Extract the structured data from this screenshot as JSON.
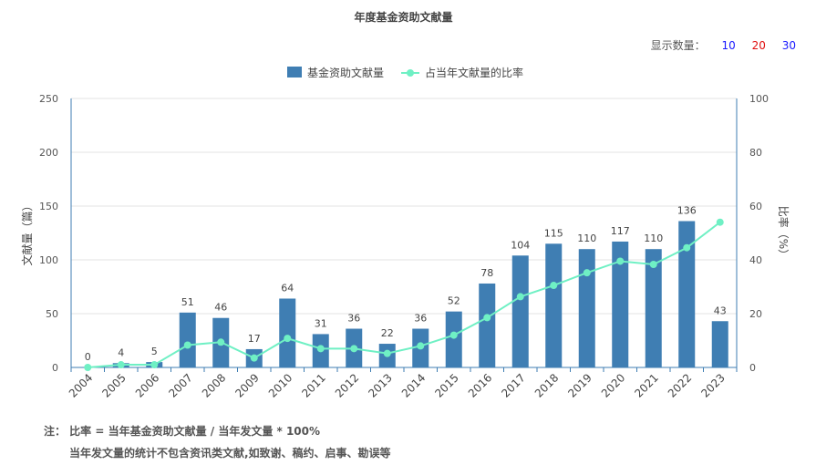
{
  "header": {
    "title": "年度基金资助文献量",
    "count_label": "显示数量：",
    "count_options": [
      "10",
      "20",
      "30"
    ]
  },
  "chart_data": {
    "type": "bar",
    "categories": [
      "2004",
      "2005",
      "2006",
      "2007",
      "2008",
      "2009",
      "2010",
      "2011",
      "2012",
      "2013",
      "2014",
      "2015",
      "2016",
      "2017",
      "2018",
      "2019",
      "2020",
      "2021",
      "2022",
      "2023"
    ],
    "series": [
      {
        "name": "基金资助文献量",
        "type": "bar",
        "axis": "left",
        "color": "#3f7eb3",
        "values": [
          0,
          4,
          5,
          51,
          46,
          17,
          64,
          31,
          36,
          22,
          36,
          52,
          78,
          104,
          115,
          110,
          117,
          110,
          136,
          43
        ]
      },
      {
        "name": "占当年文献量的比率",
        "type": "line",
        "axis": "right",
        "color": "#6ff0c4",
        "values": [
          0,
          1,
          1,
          8.3,
          9.4,
          3.5,
          10.8,
          7,
          7,
          5.2,
          8,
          12,
          18.5,
          26.3,
          30.5,
          35.2,
          39.5,
          38.3,
          44.5,
          54
        ]
      }
    ],
    "ylabel": "文献量（篇）",
    "y2label": "比率（%）",
    "ylim": [
      0,
      250
    ],
    "yticks": [
      0,
      50,
      100,
      150,
      200,
      250
    ],
    "y2lim": [
      0,
      100
    ],
    "y2ticks": [
      0,
      20,
      40,
      60,
      80,
      100
    ],
    "grid": true,
    "legend": "top-center"
  },
  "notes": {
    "line1": "注： 比率 = 当年基金资助文献量 / 当年发文量 * 100%",
    "line2": "当年发文量的统计不包含资讯类文献,如致谢、稿约、启事、勘误等"
  }
}
